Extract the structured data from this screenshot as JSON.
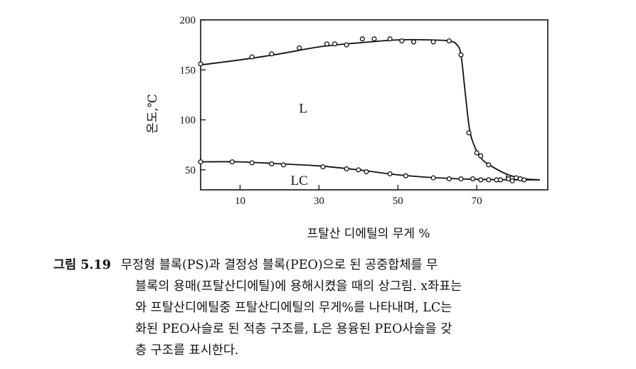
{
  "chart_data": {
    "type": "scatter",
    "xlabel": "프탈산 디에틸의 무게 %",
    "ylabel": "온도,℃",
    "xlim": [
      0,
      88
    ],
    "ylim": [
      30,
      200
    ],
    "x_ticks": [
      10,
      30,
      50,
      70
    ],
    "y_ticks": [
      50,
      100,
      150,
      200
    ],
    "grid": false,
    "regions": [
      {
        "label": "L",
        "x": 26,
        "y": 112
      },
      {
        "label": "LC",
        "x": 25,
        "y": 40
      }
    ],
    "series": [
      {
        "points": [
          [
            0,
            156
          ],
          [
            13,
            163
          ],
          [
            18,
            166
          ],
          [
            25,
            172
          ],
          [
            32,
            176
          ],
          [
            34,
            176
          ],
          [
            37,
            175
          ],
          [
            41,
            181
          ],
          [
            44,
            181
          ],
          [
            48,
            181
          ],
          [
            51,
            179
          ],
          [
            54,
            178
          ],
          [
            59,
            178
          ],
          [
            63,
            179
          ],
          [
            66,
            165
          ],
          [
            68,
            87
          ],
          [
            70,
            67
          ],
          [
            71,
            64
          ],
          [
            73,
            55
          ],
          [
            78,
            43
          ],
          [
            80,
            42
          ],
          [
            81,
            41
          ]
        ],
        "curve": [
          [
            0,
            155
          ],
          [
            10,
            160
          ],
          [
            20,
            166
          ],
          [
            30,
            173
          ],
          [
            40,
            177
          ],
          [
            50,
            180
          ],
          [
            58,
            180
          ],
          [
            63,
            179
          ],
          [
            65,
            175
          ],
          [
            66,
            165
          ],
          [
            67,
            130
          ],
          [
            68,
            95
          ],
          [
            69,
            78
          ],
          [
            71,
            62
          ],
          [
            74,
            53
          ],
          [
            78,
            45
          ],
          [
            82,
            41
          ],
          [
            86,
            40
          ]
        ]
      },
      {
        "points": [
          [
            0,
            58
          ],
          [
            8,
            58
          ],
          [
            13,
            57
          ],
          [
            18,
            56
          ],
          [
            21,
            55
          ],
          [
            31,
            53
          ],
          [
            37,
            51
          ],
          [
            40,
            50
          ],
          [
            42,
            48
          ],
          [
            48,
            46
          ],
          [
            52,
            44
          ],
          [
            59,
            42
          ],
          [
            63,
            41
          ],
          [
            66,
            41
          ],
          [
            69,
            41
          ],
          [
            71,
            40
          ],
          [
            73,
            40
          ],
          [
            75,
            40
          ],
          [
            76,
            40
          ],
          [
            78,
            41
          ],
          [
            79,
            39
          ],
          [
            81,
            41
          ],
          [
            82,
            40
          ]
        ],
        "curve": [
          [
            0,
            58
          ],
          [
            10,
            58
          ],
          [
            20,
            56
          ],
          [
            30,
            54
          ],
          [
            40,
            50
          ],
          [
            50,
            45
          ],
          [
            60,
            42
          ],
          [
            70,
            40.5
          ],
          [
            80,
            40
          ],
          [
            86,
            40
          ]
        ]
      }
    ]
  },
  "caption": {
    "label": "그림 5.19",
    "lines": [
      "무정형 블록(PS)과 결정성 블록(PEO)으로 된 공중합체를 무",
      "블록의 용매(프탈산디에틸)에 용해시켰을 때의 상그림. x좌표는",
      "와 프탈산디에틸중 프탈산디에틸의 무게%를 나타내며, LC는",
      "화된 PEO사슬로 된 적층 구조를, L은 용융된 PEO사슬을 갖",
      "층 구조를 표시한다."
    ]
  }
}
